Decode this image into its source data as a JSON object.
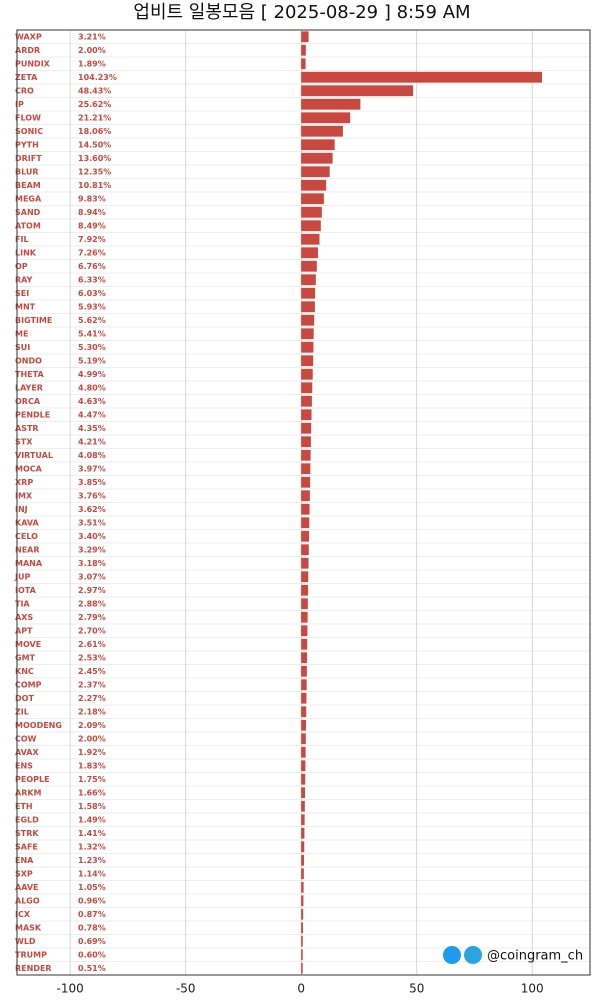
{
  "chart_data": {
    "type": "bar",
    "orientation": "horizontal",
    "title": "업비트 일봉모음 [ 2025-08-29 ]  8:59 AM",
    "watermark": "@coingram_ch",
    "xlim": [
      -123,
      125
    ],
    "xticks": [
      -100,
      -50,
      0,
      50,
      100
    ],
    "grid": true,
    "up_color": "#c9483f",
    "flat_color": "#000000",
    "down_color": "#2a6db5",
    "categories": [
      "WAXP",
      "ARDR",
      "PUNDIX",
      "ZETA",
      "CRO",
      "IP",
      "FLOW",
      "SONIC",
      "PYTH",
      "DRIFT",
      "BLUR",
      "BEAM",
      "MEGA",
      "SAND",
      "ATOM",
      "FIL",
      "LINK",
      "OP",
      "RAY",
      "SEI",
      "MNT",
      "BIGTIME",
      "ME",
      "SUI",
      "ONDO",
      "THETA",
      "LAYER",
      "ORCA",
      "PENDLE",
      "ASTR",
      "STX",
      "VIRTUAL",
      "MOCA",
      "XRP",
      "IMX",
      "INJ",
      "KAVA",
      "CELO",
      "NEAR",
      "MANA",
      "JUP",
      "IOTA",
      "TIA",
      "AXS",
      "APT",
      "MOVE",
      "GMT",
      "KNC",
      "COMP",
      "DOT",
      "ZIL",
      "MOODENG",
      "COW",
      "AVAX",
      "ENS",
      "PEOPLE",
      "ARKM",
      "ETH",
      "EGLD",
      "STRK",
      "SAFE",
      "ENA",
      "SXP",
      "AAVE",
      "ALGO",
      "ICX",
      "MASK",
      "WLD",
      "TRUMP",
      "RENDER"
    ],
    "values": [
      3.21,
      2.0,
      1.89,
      104.23,
      48.43,
      25.62,
      21.21,
      18.06,
      14.5,
      13.6,
      12.35,
      10.81,
      9.83,
      8.94,
      8.49,
      7.92,
      7.26,
      6.76,
      6.33,
      6.03,
      5.93,
      5.62,
      5.41,
      5.3,
      5.19,
      4.99,
      4.8,
      4.63,
      4.47,
      4.35,
      4.21,
      4.08,
      3.97,
      3.85,
      3.76,
      3.62,
      3.51,
      3.4,
      3.29,
      3.18,
      3.07,
      2.97,
      2.88,
      2.79,
      2.7,
      2.61,
      2.53,
      2.45,
      2.37,
      2.27,
      2.18,
      2.09,
      2.0,
      1.92,
      1.83,
      1.75,
      1.66,
      1.58,
      1.49,
      1.41,
      1.32,
      1.23,
      1.14,
      1.05,
      0.96,
      0.87,
      0.78,
      0.69,
      0.6,
      0.51
    ],
    "value_labels": [
      "3.21%",
      "2.00%",
      "1.89%",
      "104.23%",
      "48.43%",
      "25.62%",
      "21.21%",
      "18.06%",
      "14.50%",
      "13.60%",
      "12.35%",
      "10.81%",
      "9.83%",
      "8.94%",
      "8.49%",
      "7.92%",
      "7.26%",
      "6.76%",
      "6.33%",
      "6.03%",
      "5.93%",
      "5.62%",
      "5.41%",
      "5.30%",
      "5.19%",
      "4.99%",
      "4.80%",
      "4.63%",
      "4.47%",
      "4.35%",
      "4.21%",
      "4.08%",
      "3.97%",
      "3.85%",
      "3.76%",
      "3.62%",
      "3.51%",
      "3.40%",
      "3.29%",
      "3.18%",
      "3.07%",
      "2.97%",
      "2.88%",
      "2.79%",
      "2.70%",
      "2.61%",
      "2.53%",
      "2.45%",
      "2.37%",
      "2.27%",
      "2.18%",
      "2.09%",
      "2.00%",
      "1.92%",
      "1.83%",
      "1.75%",
      "1.66%",
      "1.58%",
      "1.49%",
      "1.41%",
      "1.32%",
      "1.23%",
      "1.14%",
      "1.05%",
      "0.96%",
      "0.87%",
      "0.78%",
      "0.69%",
      "0.60%",
      "0.51%"
    ]
  }
}
